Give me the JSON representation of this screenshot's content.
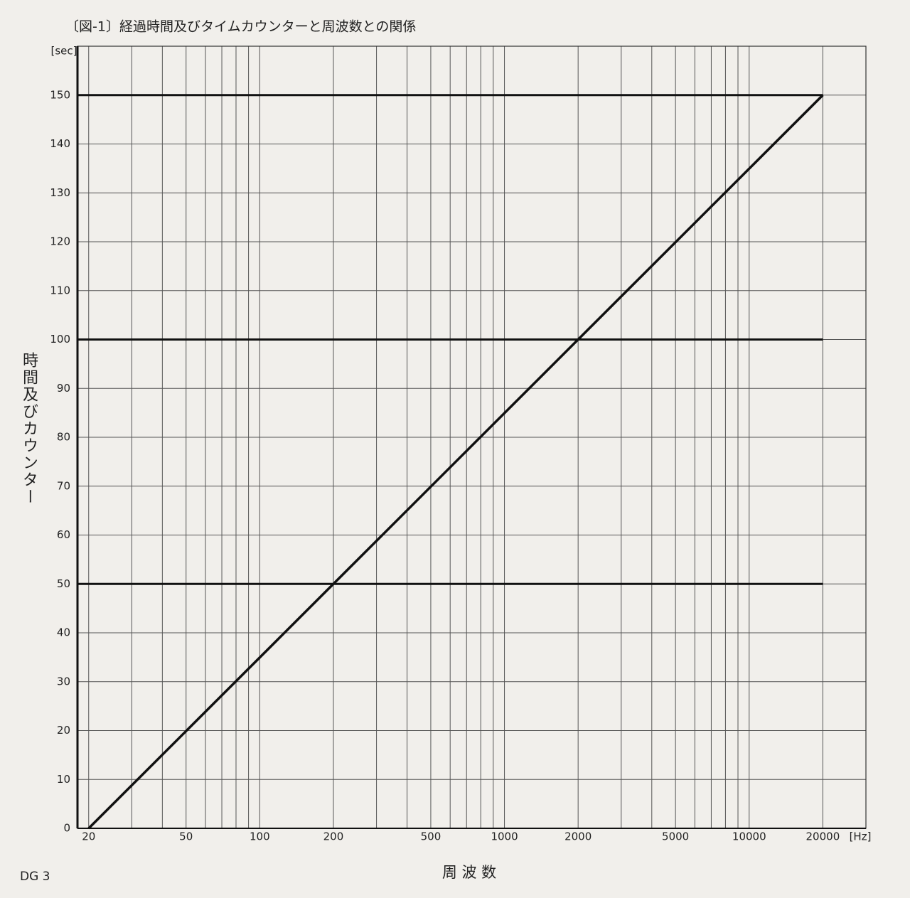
{
  "chart_data": {
    "type": "line",
    "title": "〔図-1〕経過時間及びタイムカウンターと周波数との関係",
    "x_unit": "[Hz]",
    "y_unit": "[sec]",
    "x_label": "周 波 数",
    "y_label": "時間及びカウンター",
    "x": [
      20,
      20000
    ],
    "series": [
      {
        "color": "#111111",
        "values": [
          0,
          150
        ]
      }
    ],
    "x_scale": "log",
    "xlim": [
      18,
      30000
    ],
    "xticks": [
      20,
      50,
      100,
      200,
      500,
      1000,
      2000,
      5000,
      10000,
      20000
    ],
    "xminor": [
      30,
      40,
      60,
      70,
      80,
      90,
      300,
      400,
      600,
      700,
      800,
      900,
      3000,
      4000,
      6000,
      7000,
      8000,
      9000
    ],
    "ylim": [
      0,
      160
    ],
    "yticks": [
      0,
      10,
      20,
      30,
      40,
      50,
      60,
      70,
      80,
      90,
      100,
      110,
      120,
      130,
      140,
      150
    ],
    "major_yticks": [
      50,
      100,
      150
    ],
    "grid": true
  },
  "footer": {
    "text": "DG 3"
  }
}
